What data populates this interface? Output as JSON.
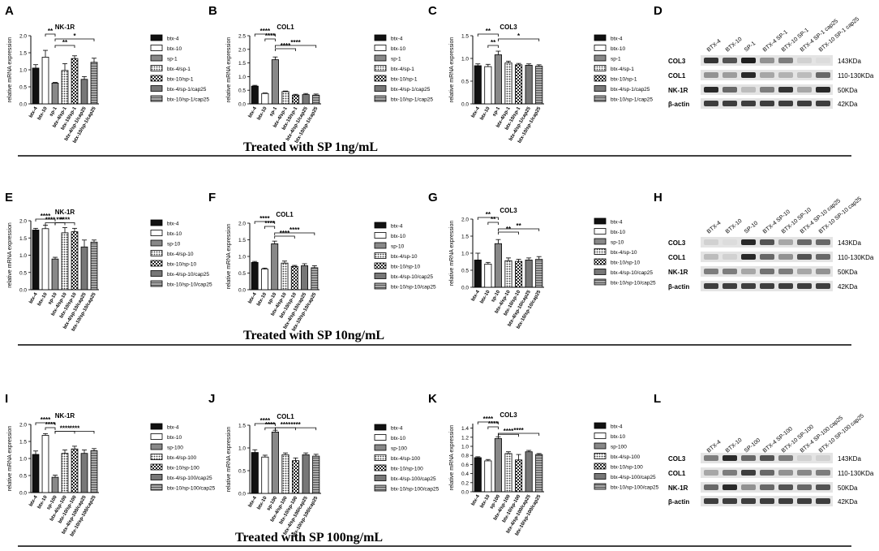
{
  "figure": {
    "rows": [
      {
        "title": "Treated with SP 1ng/mL"
      },
      {
        "title": "Treated with SP 10ng/mL"
      },
      {
        "title": "Treated with SP 100ng/mL"
      }
    ],
    "ylabel": "relative mRNA expression",
    "blot_panels": [
      {
        "letter": "D",
        "lanes": [
          "BTX-4",
          "BTX-10",
          "SP-1",
          "BTX-4 SP-1",
          "BTX-10 SP-1",
          "BTX-4 SP-1 cap25",
          "BTX-10 SP-1 cap25"
        ],
        "bands": [
          {
            "name": "COL3",
            "size": "143KDa"
          },
          {
            "name": "COL1",
            "size": "110-130KDa"
          },
          {
            "name": "NK-1R",
            "size": "50KDa"
          },
          {
            "name": "β-actin",
            "size": "42KDa"
          }
        ]
      },
      {
        "letter": "H",
        "lanes": [
          "BTX-4",
          "BTX-10",
          "SP-10",
          "BTX-4 SP-10",
          "BTX-10 SP-10",
          "BTX-4 SP-10 cap25",
          "BTX-10 SP-10 cap25"
        ],
        "bands": [
          {
            "name": "COL3",
            "size": "143KDa"
          },
          {
            "name": "COL1",
            "size": "110-130KDa"
          },
          {
            "name": "NK-1R",
            "size": "50KDa"
          },
          {
            "name": "β-actin",
            "size": "42KDa"
          }
        ]
      },
      {
        "letter": "L",
        "lanes": [
          "BTX-4",
          "BTX-10",
          "SP-100",
          "BTX-4 SP-100",
          "BTX-10 SP-100",
          "BTX-4 SP-100 cap25",
          "BTX-10 SP-100 cap25"
        ],
        "bands": [
          {
            "name": "COL3",
            "size": "143KDa"
          },
          {
            "name": "COL1",
            "size": "110-130KDa"
          },
          {
            "name": "NK-1R",
            "size": "50KDa"
          },
          {
            "name": "β-actin",
            "size": "42KDa"
          }
        ]
      }
    ]
  },
  "chart_data": [
    {
      "letter": "A",
      "type": "bar",
      "title": "NK-1R",
      "ylabel": "relative mRNA expression",
      "ylim": [
        0,
        2.0
      ],
      "yticks": [
        "0.0",
        "0.5",
        "1.0",
        "1.5",
        "2.0"
      ],
      "categories": [
        "btx-4",
        "btx-10",
        "sp-1",
        "btx-4/sp-1",
        "btx-10/sp-1",
        "btx-4/sp-1/cap25",
        "btx-10/sp-1/cap25"
      ],
      "values": [
        1.05,
        1.37,
        0.61,
        0.98,
        1.33,
        0.72,
        1.22
      ],
      "errors": [
        0.1,
        0.2,
        0.02,
        0.2,
        0.08,
        0.08,
        0.12
      ],
      "annotations": [
        {
          "from": 1,
          "to": 2,
          "label": "**"
        },
        {
          "from": 2,
          "to": 4,
          "label": "**"
        },
        {
          "from": 2,
          "to": 6,
          "label": "*"
        }
      ]
    },
    {
      "letter": "B",
      "type": "bar",
      "title": "COL1",
      "ylabel": "relative mRNA expression",
      "ylim": [
        0,
        2.5
      ],
      "yticks": [
        "0.0",
        "0.5",
        "1.0",
        "1.5",
        "2.0",
        "2.5"
      ],
      "categories": [
        "btx-4",
        "btx-10",
        "sp-1",
        "btx-4/sp-1",
        "btx-10/sp-1",
        "btx-4/sp-1/cap25",
        "btx-10/sp-1/cap25"
      ],
      "values": [
        0.65,
        0.38,
        1.62,
        0.45,
        0.32,
        0.34,
        0.32
      ],
      "errors": [
        0.03,
        0.02,
        0.1,
        0.02,
        0.03,
        0.04,
        0.04
      ],
      "annotations": [
        {
          "from": 0,
          "to": 2,
          "label": "****"
        },
        {
          "from": 2,
          "to": 6,
          "label": "****"
        },
        {
          "from": 1,
          "to": 2,
          "label": "****"
        },
        {
          "from": 2,
          "to": 4,
          "label": "****"
        }
      ]
    },
    {
      "letter": "C",
      "type": "bar",
      "title": "COL3",
      "ylabel": "relative mRNA expression",
      "ylim": [
        0,
        1.5
      ],
      "yticks": [
        "0.0",
        "0.5",
        "1.0",
        "1.5"
      ],
      "categories": [
        "btx-4",
        "btx-10",
        "sp-1",
        "btx-4/sp-1",
        "btx-10/sp-1",
        "btx-4/sp-1/cap25",
        "btx-10/sp-1/cap25"
      ],
      "values": [
        0.84,
        0.82,
        1.08,
        0.9,
        0.86,
        0.85,
        0.83
      ],
      "errors": [
        0.04,
        0.05,
        0.08,
        0.04,
        0.03,
        0.03,
        0.03
      ],
      "annotations": [
        {
          "from": 0,
          "to": 2,
          "label": "**"
        },
        {
          "from": 1,
          "to": 2,
          "label": "**"
        },
        {
          "from": 2,
          "to": 6,
          "label": "*"
        }
      ]
    },
    {
      "letter": "E",
      "type": "bar",
      "title": "NK-1R",
      "ylabel": "relative mRNA expression",
      "ylim": [
        0,
        2.0
      ],
      "yticks": [
        "0.0",
        "0.5",
        "1.0",
        "1.5",
        "2.0"
      ],
      "categories": [
        "btx-4",
        "btx-10",
        "sp-10",
        "btx-4/sp-10",
        "btx-10/sp-10",
        "btx-4/sp-10/cap25",
        "btx-10/sp-10/cap25"
      ],
      "values": [
        1.73,
        1.77,
        0.89,
        1.65,
        1.68,
        1.24,
        1.38
      ],
      "errors": [
        0.05,
        0.1,
        0.05,
        0.15,
        0.1,
        0.2,
        0.06
      ],
      "annotations": [
        {
          "from": 0,
          "to": 2,
          "label": "****"
        },
        {
          "from": 2,
          "to": 4,
          "label": "****"
        },
        {
          "from": 1,
          "to": 2,
          "label": "****"
        },
        {
          "from": 2,
          "to": 3,
          "label": "***"
        }
      ]
    },
    {
      "letter": "F",
      "type": "bar",
      "title": "COL1",
      "ylabel": "relative mRNA expression",
      "ylim": [
        0,
        2.0
      ],
      "yticks": [
        "0.0",
        "0.5",
        "1.0",
        "1.5",
        "2.0"
      ],
      "categories": [
        "btx-4",
        "btx-10",
        "sp-10",
        "btx-4/sp-10",
        "btx-10/sp-10",
        "btx-4/sp-10/cap25",
        "btx-10/sp-10/cap25"
      ],
      "values": [
        0.82,
        0.62,
        1.38,
        0.8,
        0.7,
        0.72,
        0.66
      ],
      "errors": [
        0.03,
        0.03,
        0.08,
        0.06,
        0.03,
        0.06,
        0.06
      ],
      "annotations": [
        {
          "from": 0,
          "to": 2,
          "label": "****"
        },
        {
          "from": 2,
          "to": 6,
          "label": "****"
        },
        {
          "from": 1,
          "to": 2,
          "label": "****"
        },
        {
          "from": 2,
          "to": 4,
          "label": "****"
        }
      ]
    },
    {
      "letter": "G",
      "type": "bar",
      "title": "COL3",
      "ylabel": "relative mRNA expression",
      "ylim": [
        0,
        2.0
      ],
      "yticks": [
        "0.0",
        "0.5",
        "1.0",
        "1.5",
        "2.0"
      ],
      "categories": [
        "btx-4",
        "btx-10",
        "sp-10",
        "btx-4/sp-10",
        "btx-10/sp-10",
        "btx-4/sp-10/cap25",
        "btx-10/sp-10/cap25"
      ],
      "values": [
        0.8,
        0.68,
        1.28,
        0.78,
        0.76,
        0.8,
        0.82
      ],
      "errors": [
        0.2,
        0.05,
        0.12,
        0.08,
        0.06,
        0.06,
        0.08
      ],
      "annotations": [
        {
          "from": 0,
          "to": 2,
          "label": "**"
        },
        {
          "from": 2,
          "to": 6,
          "label": "**"
        },
        {
          "from": 1,
          "to": 2,
          "label": "**"
        },
        {
          "from": 2,
          "to": 4,
          "label": "**"
        }
      ]
    },
    {
      "letter": "I",
      "type": "bar",
      "title": "NK-1R",
      "ylabel": "relative mRNA expression",
      "ylim": [
        0,
        2.0
      ],
      "yticks": [
        "0.0",
        "0.5",
        "1.0",
        "1.5",
        "2.0"
      ],
      "categories": [
        "btx-4",
        "btx-10",
        "sp-100",
        "btx-4/sp-100",
        "btx-10/sp-100",
        "btx-4/sp-100/cap25",
        "btx-10/sp-100/cap25"
      ],
      "values": [
        1.12,
        1.68,
        0.45,
        1.15,
        1.28,
        1.15,
        1.23
      ],
      "errors": [
        0.1,
        0.05,
        0.06,
        0.1,
        0.08,
        0.1,
        0.06
      ],
      "annotations": [
        {
          "from": 0,
          "to": 2,
          "label": "****"
        },
        {
          "from": 2,
          "to": 6,
          "label": "****"
        },
        {
          "from": 1,
          "to": 2,
          "label": "****"
        },
        {
          "from": 2,
          "to": 4,
          "label": "****"
        }
      ]
    },
    {
      "letter": "J",
      "type": "bar",
      "title": "COL1",
      "ylabel": "relative mRNA expression",
      "ylim": [
        0,
        1.5
      ],
      "yticks": [
        "0.0",
        "0.5",
        "1.0",
        "1.5"
      ],
      "categories": [
        "btx-4",
        "btx-10",
        "sp-100",
        "btx-4/sp-100",
        "btx-10/sp-100",
        "btx-4/sp-100/cap25",
        "btx-10/sp-100/cap25"
      ],
      "values": [
        0.9,
        0.8,
        1.35,
        0.85,
        0.72,
        0.85,
        0.82
      ],
      "errors": [
        0.06,
        0.04,
        0.04,
        0.04,
        0.06,
        0.04,
        0.04
      ],
      "annotations": [
        {
          "from": 0,
          "to": 2,
          "label": "****"
        },
        {
          "from": 2,
          "to": 6,
          "label": "****"
        },
        {
          "from": 1,
          "to": 2,
          "label": "****"
        },
        {
          "from": 2,
          "to": 4,
          "label": "****"
        }
      ]
    },
    {
      "letter": "K",
      "type": "bar",
      "title": "COL3",
      "ylabel": "relative mRNA expression",
      "ylim": [
        0,
        1.5
      ],
      "yticks": [
        "0.0",
        "0.2",
        "0.4",
        "0.6",
        "0.8",
        "1.0",
        "1.2",
        "1.4"
      ],
      "categories": [
        "btx-4",
        "btx-10",
        "sp-100",
        "btx-4/sp-100",
        "btx-10/sp-100",
        "btx-4/sp-100/cap25",
        "btx-10/sp-100/cap25"
      ],
      "values": [
        0.75,
        0.68,
        1.17,
        0.84,
        0.7,
        0.88,
        0.82
      ],
      "errors": [
        0.02,
        0.03,
        0.04,
        0.04,
        0.12,
        0.03,
        0.02
      ],
      "annotations": [
        {
          "from": 0,
          "to": 2,
          "label": "****"
        },
        {
          "from": 2,
          "to": 6,
          "label": "****"
        },
        {
          "from": 1,
          "to": 2,
          "label": "****"
        },
        {
          "from": 2,
          "to": 4,
          "label": "****"
        }
      ]
    }
  ]
}
